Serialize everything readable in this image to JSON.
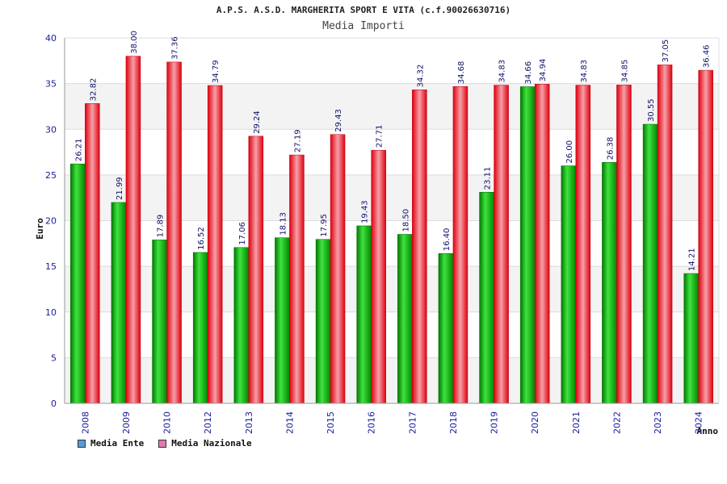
{
  "chart_data": {
    "type": "bar",
    "title": "A.P.S. A.S.D. MARGHERITA SPORT E VITA (c.f.90026630716)",
    "subtitle": "Media Importi",
    "xlabel": "Anno",
    "ylabel": "Euro",
    "ylim": [
      0,
      40
    ],
    "yticks": [
      0,
      5,
      10,
      15,
      20,
      25,
      30,
      35,
      40
    ],
    "grid": true,
    "legend_position": "bottom-left",
    "categories": [
      "2008",
      "2009",
      "2010",
      "2012",
      "2013",
      "2014",
      "2015",
      "2016",
      "2017",
      "2018",
      "2019",
      "2020",
      "2021",
      "2022",
      "2023",
      "2024"
    ],
    "series": [
      {
        "name": "Media Ente",
        "color": "#00b400",
        "legend_color": "#5b9bd5",
        "values": [
          26.21,
          21.99,
          17.89,
          16.52,
          17.06,
          18.13,
          17.95,
          19.43,
          18.5,
          16.4,
          23.11,
          34.66,
          26.0,
          26.38,
          30.55,
          14.21
        ],
        "labels": [
          "26.21",
          "21.99",
          "17.89",
          "16.52",
          "17.06",
          "18.13",
          "17.95",
          "19.43",
          "18.50",
          "16.40",
          "23.11",
          "34.66",
          "26.00",
          "26.38",
          "30.55",
          "14.21"
        ]
      },
      {
        "name": "Media Nazionale",
        "color": "#e8101a",
        "legend_color": "#e07ab0",
        "values": [
          32.82,
          38.0,
          37.36,
          34.79,
          29.24,
          27.19,
          29.43,
          27.71,
          34.32,
          34.68,
          34.83,
          34.94,
          34.83,
          34.85,
          37.05,
          36.46
        ],
        "labels": [
          "32.82",
          "38.00",
          "37.36",
          "34.79",
          "29.24",
          "27.19",
          "29.43",
          "27.71",
          "34.32",
          "34.68",
          "34.83",
          "34.94",
          "34.83",
          "34.85",
          "37.05",
          "36.46"
        ]
      }
    ]
  }
}
